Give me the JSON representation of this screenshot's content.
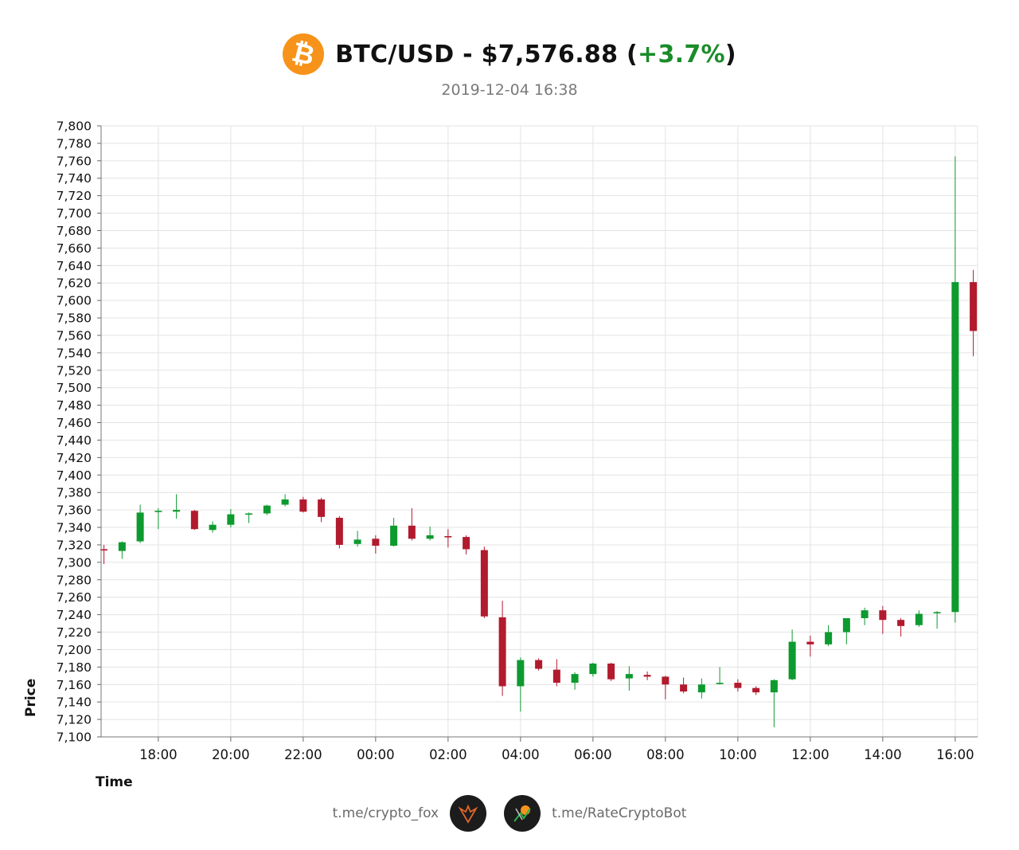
{
  "header": {
    "logo_symbol": "₿",
    "title_prefix": "BTC/USD - $7,576.88 (",
    "change": "+3.7%",
    "title_suffix": ")",
    "timestamp": "2019-12-04 16:38",
    "colors": {
      "brand": "#f7931a",
      "change_positive": "#1a8c2a"
    }
  },
  "footer": {
    "left_link": "t.me/crypto_fox",
    "right_link": "t.me/RateCryptoBot",
    "left_avatar_icon": "fox-avatar-icon",
    "right_avatar_icon": "rate-bot-avatar-icon"
  },
  "chart_data": {
    "type": "candlestick",
    "xlabel": "Time",
    "ylabel": "Price",
    "ylim": [
      7100,
      7800
    ],
    "y_tick_step": 20,
    "x_ticks": [
      "18:00",
      "20:00",
      "22:00",
      "00:00",
      "02:00",
      "04:00",
      "06:00",
      "08:00",
      "10:00",
      "12:00",
      "14:00",
      "16:00"
    ],
    "grid": true,
    "colors": {
      "up": "#0d9a2f",
      "down": "#b21a2e",
      "grid": "#e3e3e3"
    },
    "candles": [
      {
        "o": 7315,
        "h": 7320,
        "l": 7298,
        "c": 7314
      },
      {
        "o": 7313,
        "h": 7324,
        "l": 7304,
        "c": 7323
      },
      {
        "o": 7324,
        "h": 7366,
        "l": 7322,
        "c": 7357
      },
      {
        "o": 7358,
        "h": 7362,
        "l": 7338,
        "c": 7359
      },
      {
        "o": 7358,
        "h": 7378,
        "l": 7350,
        "c": 7360
      },
      {
        "o": 7359,
        "h": 7360,
        "l": 7337,
        "c": 7338
      },
      {
        "o": 7337,
        "h": 7347,
        "l": 7334,
        "c": 7343
      },
      {
        "o": 7343,
        "h": 7361,
        "l": 7340,
        "c": 7355
      },
      {
        "o": 7355,
        "h": 7357,
        "l": 7345,
        "c": 7356
      },
      {
        "o": 7356,
        "h": 7366,
        "l": 7354,
        "c": 7365
      },
      {
        "o": 7366,
        "h": 7378,
        "l": 7364,
        "c": 7372
      },
      {
        "o": 7372,
        "h": 7375,
        "l": 7357,
        "c": 7358
      },
      {
        "o": 7372,
        "h": 7374,
        "l": 7346,
        "c": 7352
      },
      {
        "o": 7351,
        "h": 7353,
        "l": 7316,
        "c": 7320
      },
      {
        "o": 7321,
        "h": 7336,
        "l": 7318,
        "c": 7326
      },
      {
        "o": 7327,
        "h": 7331,
        "l": 7310,
        "c": 7319
      },
      {
        "o": 7319,
        "h": 7351,
        "l": 7318,
        "c": 7342
      },
      {
        "o": 7342,
        "h": 7362,
        "l": 7325,
        "c": 7327
      },
      {
        "o": 7327,
        "h": 7341,
        "l": 7325,
        "c": 7331
      },
      {
        "o": 7330,
        "h": 7338,
        "l": 7317,
        "c": 7329
      },
      {
        "o": 7329,
        "h": 7331,
        "l": 7309,
        "c": 7315
      },
      {
        "o": 7314,
        "h": 7318,
        "l": 7236,
        "c": 7238
      },
      {
        "o": 7237,
        "h": 7256,
        "l": 7147,
        "c": 7158
      },
      {
        "o": 7158,
        "h": 7191,
        "l": 7129,
        "c": 7188
      },
      {
        "o": 7188,
        "h": 7190,
        "l": 7176,
        "c": 7178
      },
      {
        "o": 7177,
        "h": 7189,
        "l": 7158,
        "c": 7162
      },
      {
        "o": 7162,
        "h": 7174,
        "l": 7154,
        "c": 7172
      },
      {
        "o": 7172,
        "h": 7185,
        "l": 7169,
        "c": 7184
      },
      {
        "o": 7184,
        "h": 7185,
        "l": 7164,
        "c": 7166
      },
      {
        "o": 7167,
        "h": 7181,
        "l": 7153,
        "c": 7172
      },
      {
        "o": 7171,
        "h": 7175,
        "l": 7165,
        "c": 7169
      },
      {
        "o": 7169,
        "h": 7170,
        "l": 7143,
        "c": 7160
      },
      {
        "o": 7160,
        "h": 7168,
        "l": 7150,
        "c": 7152
      },
      {
        "o": 7151,
        "h": 7167,
        "l": 7144,
        "c": 7160
      },
      {
        "o": 7161,
        "h": 7180,
        "l": 7160,
        "c": 7162
      },
      {
        "o": 7162,
        "h": 7166,
        "l": 7152,
        "c": 7156
      },
      {
        "o": 7156,
        "h": 7158,
        "l": 7148,
        "c": 7151
      },
      {
        "o": 7151,
        "h": 7166,
        "l": 7111,
        "c": 7165
      },
      {
        "o": 7166,
        "h": 7223,
        "l": 7165,
        "c": 7209
      },
      {
        "o": 7209,
        "h": 7216,
        "l": 7192,
        "c": 7206
      },
      {
        "o": 7206,
        "h": 7228,
        "l": 7204,
        "c": 7220
      },
      {
        "o": 7220,
        "h": 7236,
        "l": 7206,
        "c": 7236
      },
      {
        "o": 7236,
        "h": 7248,
        "l": 7228,
        "c": 7245
      },
      {
        "o": 7245,
        "h": 7250,
        "l": 7218,
        "c": 7234
      },
      {
        "o": 7234,
        "h": 7236,
        "l": 7215,
        "c": 7227
      },
      {
        "o": 7228,
        "h": 7245,
        "l": 7226,
        "c": 7241
      },
      {
        "o": 7242,
        "h": 7244,
        "l": 7224,
        "c": 7243
      },
      {
        "o": 7243,
        "h": 7765,
        "l": 7231,
        "c": 7621
      },
      {
        "o": 7621,
        "h": 7635,
        "l": 7536,
        "c": 7565
      }
    ]
  }
}
